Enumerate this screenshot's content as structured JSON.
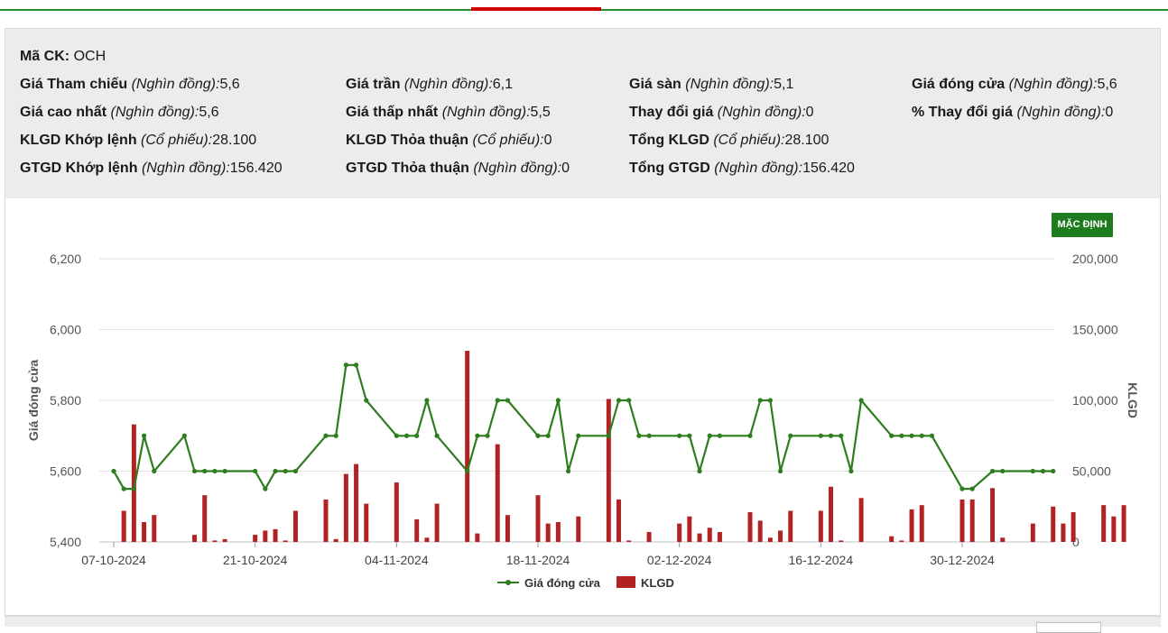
{
  "info": {
    "ticker_label": "Mã CK:",
    "ticker": "OCH",
    "rows": [
      [
        {
          "label": "Giá Tham chiếu",
          "unit": "(Nghìn đồng):",
          "value": "5,6"
        },
        {
          "label": "Giá trần",
          "unit": "(Nghìn đồng):",
          "value": "6,1"
        },
        {
          "label": "Giá sàn",
          "unit": "(Nghìn đồng):",
          "value": "5,1"
        },
        {
          "label": "Giá đóng cửa",
          "unit": "(Nghìn đồng):",
          "value": "5,6"
        }
      ],
      [
        {
          "label": "Giá cao nhất",
          "unit": "(Nghìn đồng):",
          "value": "5,6"
        },
        {
          "label": "Giá thấp nhất",
          "unit": "(Nghìn đồng):",
          "value": "5,5"
        },
        {
          "label": "Thay đổi giá",
          "unit": "(Nghìn đồng):",
          "value": "0"
        },
        {
          "label": "% Thay đổi giá",
          "unit": "(Nghìn đồng):",
          "value": "0"
        }
      ],
      [
        {
          "label": "KLGD Khớp lệnh",
          "unit": "(Cổ phiếu):",
          "value": "28.100"
        },
        {
          "label": "KLGD Thỏa thuận",
          "unit": "(Cổ phiếu):",
          "value": "0"
        },
        {
          "label": "Tổng KLGD",
          "unit": "(Cổ phiếu):",
          "value": "28.100"
        }
      ],
      [
        {
          "label": "GTGD Khớp lệnh",
          "unit": "(Nghìn đồng):",
          "value": "156.420"
        },
        {
          "label": "GTGD Thỏa thuận",
          "unit": "(Nghìn đồng):",
          "value": "0"
        },
        {
          "label": "Tổng GTGD",
          "unit": "(Nghìn đồng):",
          "value": "156.420"
        }
      ]
    ]
  },
  "default_button": "MẶC ĐỊNH",
  "chart_data": {
    "type": "bar+line",
    "xlabel": "",
    "ylabel_left": "Giá đóng cửa",
    "ylabel_right": "KLGD",
    "ylim_left": [
      5400,
      6200
    ],
    "ylim_right": [
      0,
      200000
    ],
    "yticks_left": [
      "6,200",
      "6,000",
      "5,800",
      "5,600",
      "5,400"
    ],
    "yticks_right": [
      "200,000",
      "150,000",
      "100,000",
      "50,000",
      "0"
    ],
    "x_tick_labels": [
      "07-10-2024",
      "21-10-2024",
      "04-11-2024",
      "18-11-2024",
      "02-12-2024",
      "16-12-2024",
      "30-12-2024"
    ],
    "x_tick_dates": [
      "2024-10-07",
      "2024-10-21",
      "2024-11-04",
      "2024-11-18",
      "2024-12-02",
      "2024-12-16",
      "2024-12-30"
    ],
    "grid": true,
    "legend_position": "bottom-center",
    "series": [
      {
        "name": "Giá đóng cửa",
        "kind": "line",
        "color": "#2e7d1e",
        "points": [
          [
            "2024-10-07",
            5600
          ],
          [
            "2024-10-08",
            5550
          ],
          [
            "2024-10-09",
            5550
          ],
          [
            "2024-10-10",
            5700
          ],
          [
            "2024-10-11",
            5600
          ],
          [
            "2024-10-14",
            5700
          ],
          [
            "2024-10-15",
            5600
          ],
          [
            "2024-10-16",
            5600
          ],
          [
            "2024-10-17",
            5600
          ],
          [
            "2024-10-18",
            5600
          ],
          [
            "2024-10-21",
            5600
          ],
          [
            "2024-10-22",
            5550
          ],
          [
            "2024-10-23",
            5600
          ],
          [
            "2024-10-24",
            5600
          ],
          [
            "2024-10-25",
            5600
          ],
          [
            "2024-10-28",
            5700
          ],
          [
            "2024-10-29",
            5700
          ],
          [
            "2024-10-30",
            5900
          ],
          [
            "2024-10-31",
            5900
          ],
          [
            "2024-11-01",
            5800
          ],
          [
            "2024-11-04",
            5700
          ],
          [
            "2024-11-05",
            5700
          ],
          [
            "2024-11-06",
            5700
          ],
          [
            "2024-11-07",
            5800
          ],
          [
            "2024-11-08",
            5700
          ],
          [
            "2024-11-11",
            5600
          ],
          [
            "2024-11-12",
            5700
          ],
          [
            "2024-11-13",
            5700
          ],
          [
            "2024-11-14",
            5800
          ],
          [
            "2024-11-15",
            5800
          ],
          [
            "2024-11-18",
            5700
          ],
          [
            "2024-11-19",
            5700
          ],
          [
            "2024-11-20",
            5800
          ],
          [
            "2024-11-21",
            5600
          ],
          [
            "2024-11-22",
            5700
          ],
          [
            "2024-11-25",
            5700
          ],
          [
            "2024-11-26",
            5800
          ],
          [
            "2024-11-27",
            5800
          ],
          [
            "2024-11-28",
            5700
          ],
          [
            "2024-11-29",
            5700
          ],
          [
            "2024-12-02",
            5700
          ],
          [
            "2024-12-03",
            5700
          ],
          [
            "2024-12-04",
            5600
          ],
          [
            "2024-12-05",
            5700
          ],
          [
            "2024-12-06",
            5700
          ],
          [
            "2024-12-09",
            5700
          ],
          [
            "2024-12-10",
            5800
          ],
          [
            "2024-12-11",
            5800
          ],
          [
            "2024-12-12",
            5600
          ],
          [
            "2024-12-13",
            5700
          ],
          [
            "2024-12-16",
            5700
          ],
          [
            "2024-12-17",
            5700
          ],
          [
            "2024-12-18",
            5700
          ],
          [
            "2024-12-19",
            5600
          ],
          [
            "2024-12-20",
            5800
          ],
          [
            "2024-12-23",
            5700
          ],
          [
            "2024-12-24",
            5700
          ],
          [
            "2024-12-25",
            5700
          ],
          [
            "2024-12-26",
            5700
          ],
          [
            "2024-12-27",
            5700
          ],
          [
            "2024-12-30",
            5550
          ],
          [
            "2024-12-31",
            5550
          ],
          [
            "2025-01-02",
            5600
          ],
          [
            "2025-01-03",
            5600
          ],
          [
            "2025-01-06",
            5600
          ],
          [
            "2025-01-07",
            5600
          ],
          [
            "2025-01-08",
            5600
          ]
        ]
      },
      {
        "name": "KLGD",
        "kind": "bar",
        "color": "#b22222",
        "points": [
          [
            "2024-10-08",
            22000
          ],
          [
            "2024-10-09",
            83000
          ],
          [
            "2024-10-10",
            14000
          ],
          [
            "2024-10-11",
            19000
          ],
          [
            "2024-10-15",
            5000
          ],
          [
            "2024-10-16",
            33000
          ],
          [
            "2024-10-17",
            1000
          ],
          [
            "2024-10-18",
            2000
          ],
          [
            "2024-10-21",
            5000
          ],
          [
            "2024-10-22",
            8000
          ],
          [
            "2024-10-23",
            9000
          ],
          [
            "2024-10-24",
            1000
          ],
          [
            "2024-10-25",
            22000
          ],
          [
            "2024-10-28",
            30000
          ],
          [
            "2024-10-29",
            2000
          ],
          [
            "2024-10-30",
            48000
          ],
          [
            "2024-10-31",
            55000
          ],
          [
            "2024-11-01",
            27000
          ],
          [
            "2024-11-04",
            42000
          ],
          [
            "2024-11-06",
            16000
          ],
          [
            "2024-11-07",
            3000
          ],
          [
            "2024-11-08",
            27000
          ],
          [
            "2024-11-11",
            135000
          ],
          [
            "2024-11-12",
            6000
          ],
          [
            "2024-11-14",
            69000
          ],
          [
            "2024-11-15",
            19000
          ],
          [
            "2024-11-18",
            33000
          ],
          [
            "2024-11-19",
            13000
          ],
          [
            "2024-11-20",
            14000
          ],
          [
            "2024-11-22",
            18000
          ],
          [
            "2024-11-25",
            101000
          ],
          [
            "2024-11-26",
            30000
          ],
          [
            "2024-11-27",
            1000
          ],
          [
            "2024-11-29",
            7000
          ],
          [
            "2024-12-02",
            13000
          ],
          [
            "2024-12-03",
            18000
          ],
          [
            "2024-12-04",
            6000
          ],
          [
            "2024-12-05",
            10000
          ],
          [
            "2024-12-06",
            7000
          ],
          [
            "2024-12-09",
            21000
          ],
          [
            "2024-12-10",
            15000
          ],
          [
            "2024-12-11",
            3000
          ],
          [
            "2024-12-12",
            8000
          ],
          [
            "2024-12-13",
            22000
          ],
          [
            "2024-12-16",
            22000
          ],
          [
            "2024-12-17",
            39000
          ],
          [
            "2024-12-18",
            1000
          ],
          [
            "2024-12-20",
            31000
          ],
          [
            "2024-12-23",
            4000
          ],
          [
            "2024-12-24",
            1000
          ],
          [
            "2024-12-25",
            23000
          ],
          [
            "2024-12-26",
            26000
          ],
          [
            "2024-12-30",
            30000
          ],
          [
            "2024-12-31",
            30000
          ],
          [
            "2025-01-02",
            38000
          ],
          [
            "2025-01-03",
            3000
          ],
          [
            "2025-01-06",
            13000
          ],
          [
            "2025-01-08",
            25000
          ],
          [
            "2025-01-09",
            13000
          ],
          [
            "2025-01-10",
            21000
          ],
          [
            "2025-01-13",
            26000
          ],
          [
            "2025-01-14",
            18000
          ],
          [
            "2025-01-15",
            26000
          ]
        ]
      }
    ]
  }
}
